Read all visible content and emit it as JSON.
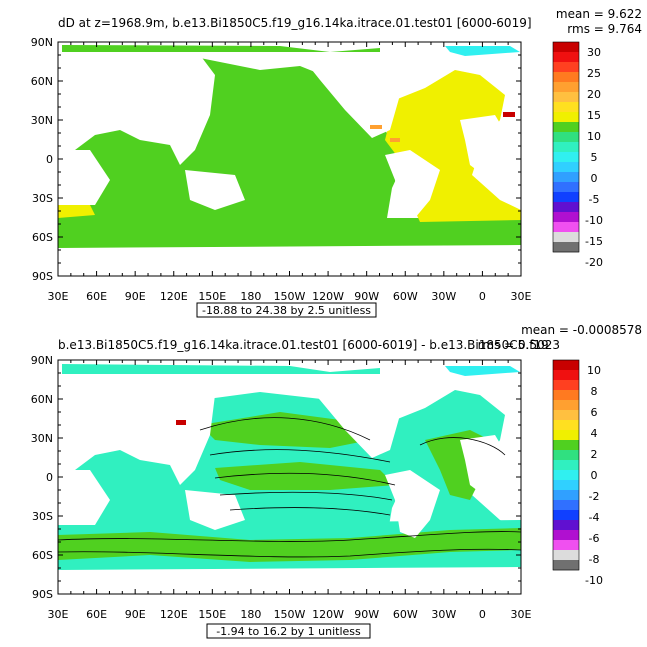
{
  "panels": [
    {
      "id": "top",
      "title": "dD at z=1968.9m, b.e13.Bi1850C5.f19_g16.14ka.itrace.01.test01 [6000-6019]",
      "mean_label": "mean = 9.622",
      "rms_label": "rms = 9.764",
      "lat_labels": [
        "90N",
        "60N",
        "30N",
        "0",
        "30S",
        "60S",
        "90S"
      ],
      "lon_labels": [
        "30E",
        "60E",
        "90E",
        "120E",
        "150E",
        "180",
        "150W",
        "120W",
        "90W",
        "60W",
        "30W",
        "0",
        "30E"
      ],
      "contour_info": "-18.88 to 24.38 by 2.5 unitless",
      "colorbar": {
        "labels": [
          "30",
          "25",
          "20",
          "15",
          "10",
          "5",
          "0",
          "-5",
          "-10",
          "-15",
          "-20"
        ],
        "colors": [
          "#c80000",
          "#f01010",
          "#ff4020",
          "#ff7a20",
          "#ffa030",
          "#ffc040",
          "#ffe020",
          "#f0f000",
          "#50d020",
          "#30e080",
          "#30f0c0",
          "#30f0f0",
          "#30d0ff",
          "#30a0ff",
          "#3070ff",
          "#1040ff",
          "#6010d0",
          "#b010d0",
          "#f050f0",
          "#dcdcdc",
          "#707070"
        ]
      }
    },
    {
      "id": "bottom",
      "title": "b.e13.Bi1850C5.f19_g16.14ka.itrace.01.test01  [6000-6019] - b.e13.Bi1850C5.f19",
      "mean_label": "mean = -0.0008578",
      "rms_label": "rms = 0.5023",
      "lat_labels": [
        "90N",
        "60N",
        "30N",
        "0",
        "30S",
        "60S",
        "90S"
      ],
      "lon_labels": [
        "30E",
        "60E",
        "90E",
        "120E",
        "150E",
        "180",
        "150W",
        "120W",
        "90W",
        "60W",
        "30W",
        "0",
        "30E"
      ],
      "contour_info": "-1.94 to 16.2 by 1 unitless",
      "colorbar": {
        "labels": [
          "10",
          "8",
          "6",
          "4",
          "2",
          "0",
          "-2",
          "-4",
          "-6",
          "-8",
          "-10"
        ],
        "colors": [
          "#c80000",
          "#f01010",
          "#ff4020",
          "#ff7a20",
          "#ffa030",
          "#ffc040",
          "#ffe020",
          "#f0f000",
          "#50d020",
          "#30e080",
          "#30f0c0",
          "#30f0f0",
          "#30d0ff",
          "#30a0ff",
          "#3070ff",
          "#1040ff",
          "#6010d0",
          "#b010d0",
          "#f050f0",
          "#dcdcdc",
          "#707070"
        ]
      }
    }
  ],
  "map_colors": {
    "green": "#50d020",
    "yellow": "#f0f000",
    "aqua": "#30f0c0",
    "cyan": "#30f0f0",
    "red": "#c80000",
    "orange": "#ffa030"
  }
}
